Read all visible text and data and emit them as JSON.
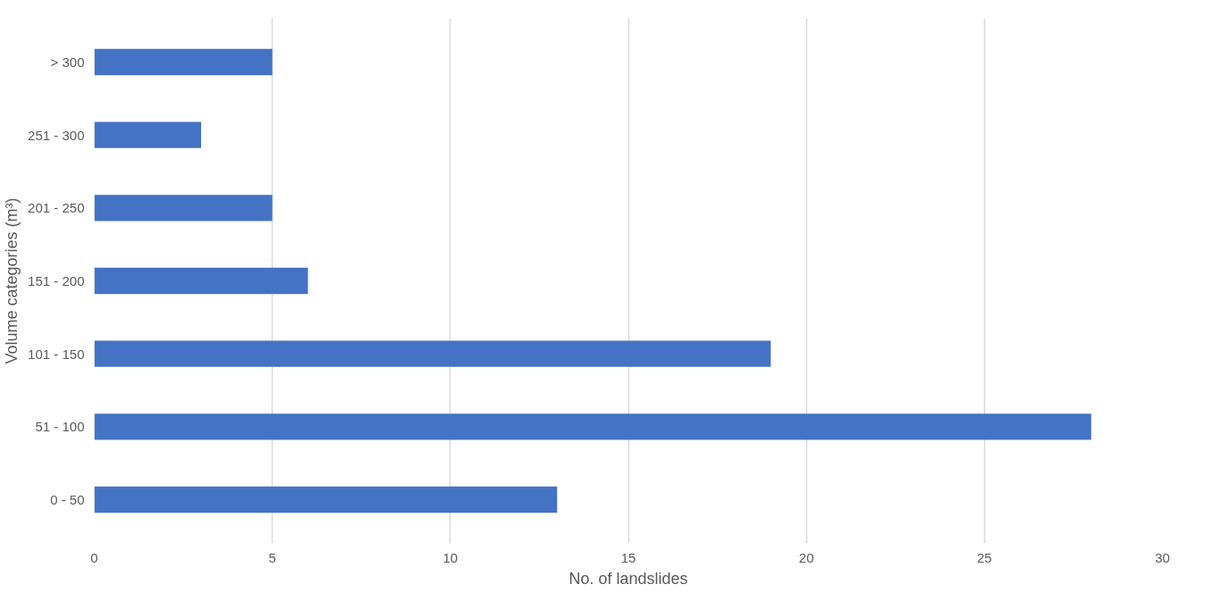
{
  "chart_data": {
    "type": "bar",
    "orientation": "horizontal",
    "xlabel": "No. of landslides",
    "ylabel": "Volume categories (m³)",
    "categories": [
      "> 300",
      "251 - 300",
      "201 - 250",
      "151 - 200",
      "101 - 150",
      "51 - 100",
      "0 - 50"
    ],
    "values": [
      5,
      3,
      5,
      6,
      19,
      28,
      13
    ],
    "color": "#4472c4",
    "xlim": [
      0,
      30
    ],
    "xticks": [
      0,
      5,
      10,
      15,
      20,
      25,
      30
    ],
    "grid": "x"
  }
}
